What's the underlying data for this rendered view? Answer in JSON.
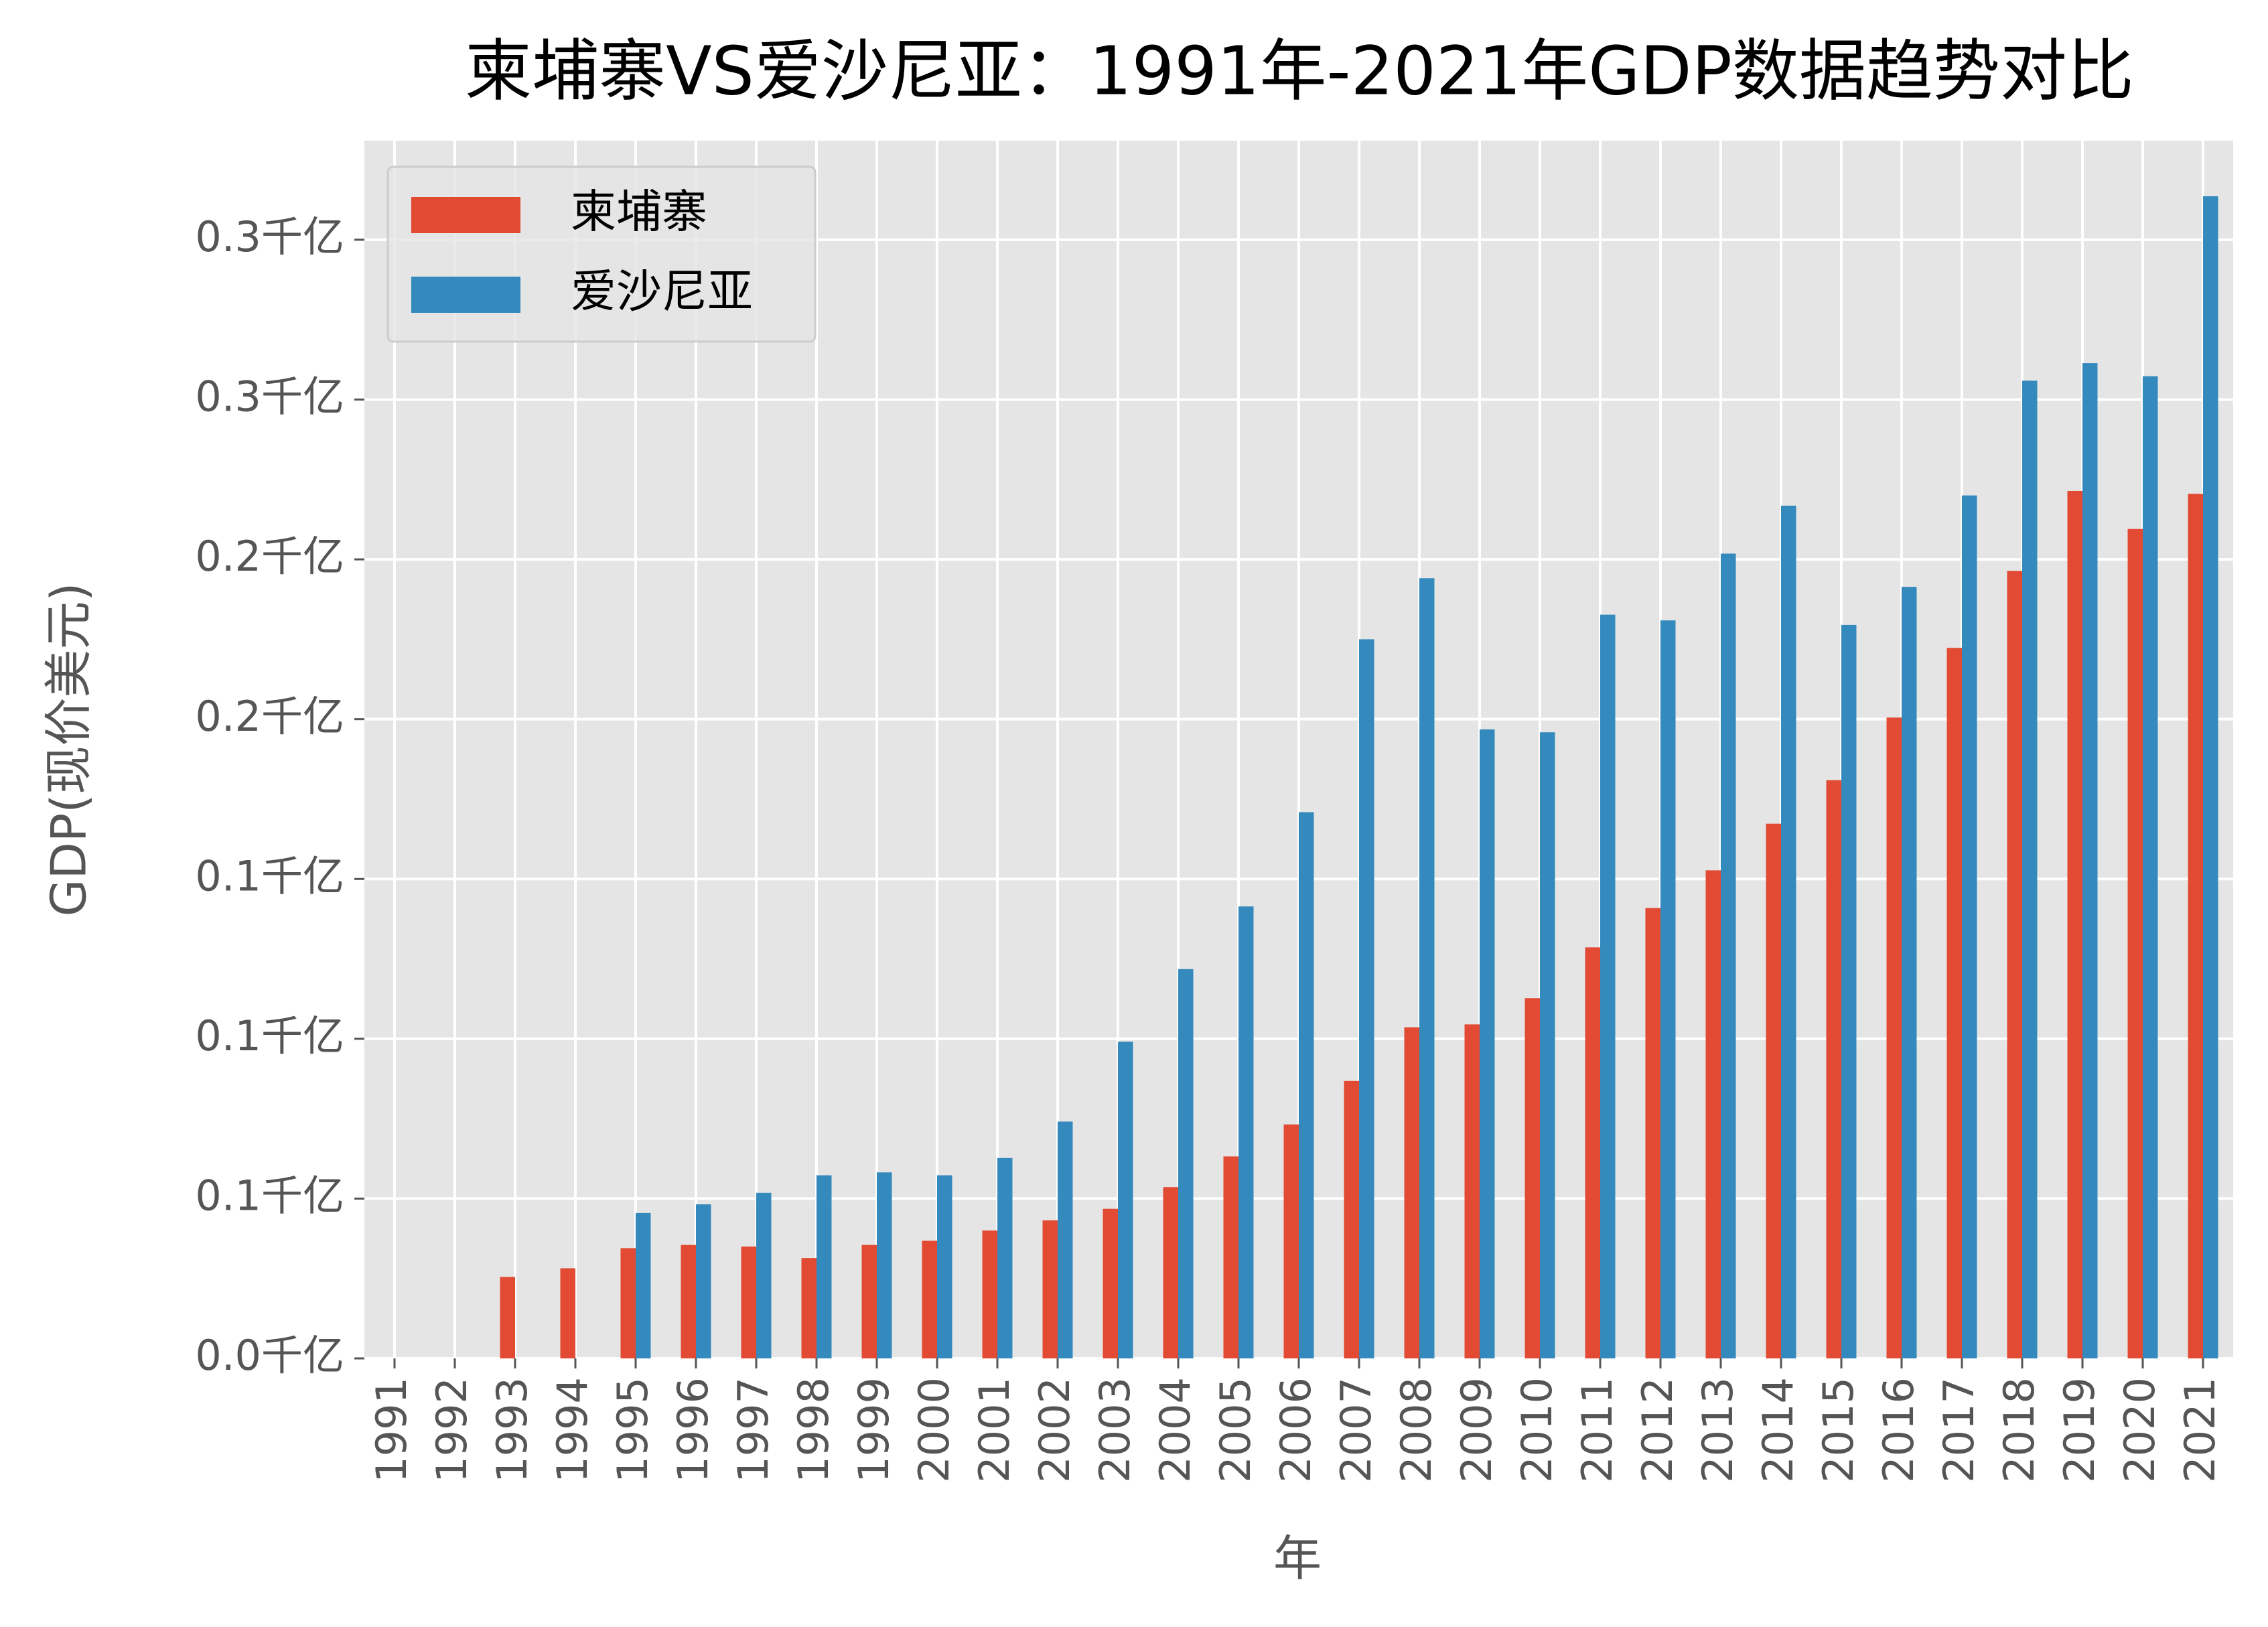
{
  "chart_data": {
    "type": "bar",
    "title": "柬埔寨VS爱沙尼亚：1991年-2021年GDP数据趋势对比",
    "x_label": "年",
    "y_label": "GDP(现价美元)",
    "categories": [
      "1991",
      "1992",
      "1993",
      "1994",
      "1995",
      "1996",
      "1997",
      "1998",
      "1999",
      "2000",
      "2001",
      "2002",
      "2003",
      "2004",
      "2005",
      "2006",
      "2007",
      "2008",
      "2009",
      "2010",
      "2011",
      "2012",
      "2013",
      "2014",
      "2015",
      "2016",
      "2017",
      "2018",
      "2019",
      "2020",
      "2021"
    ],
    "series": [
      {
        "name": "柬埔寨",
        "color": "#E24A33",
        "values": [
          null,
          null,
          0.0255,
          0.0282,
          0.0345,
          0.0355,
          0.035,
          0.0314,
          0.0355,
          0.0368,
          0.04,
          0.0432,
          0.0468,
          0.0536,
          0.0632,
          0.0732,
          0.0868,
          0.1036,
          0.1045,
          0.1127,
          0.1286,
          0.1409,
          0.1527,
          0.1673,
          0.1809,
          0.2005,
          0.2223,
          0.2464,
          0.2714,
          0.2595,
          0.2705
        ]
      },
      {
        "name": "爱沙尼亚",
        "color": "#348ABD",
        "values": [
          null,
          null,
          null,
          null,
          0.0455,
          0.0482,
          0.0518,
          0.0573,
          0.0582,
          0.0573,
          0.0627,
          0.0741,
          0.0991,
          0.1218,
          0.1414,
          0.1709,
          0.225,
          0.2441,
          0.1968,
          0.1959,
          0.2327,
          0.2309,
          0.2518,
          0.2668,
          0.2295,
          0.2414,
          0.27,
          0.3059,
          0.3114,
          0.3073,
          0.3636
        ]
      }
    ],
    "ylim": [
      0,
      0.381
    ],
    "yticks": [
      {
        "value": 0,
        "label": "0.0千亿"
      },
      {
        "value": 0.05,
        "label": "0.1千亿"
      },
      {
        "value": 0.1,
        "label": "0.1千亿"
      },
      {
        "value": 0.15,
        "label": "0.1千亿"
      },
      {
        "value": 0.2,
        "label": "0.2千亿"
      },
      {
        "value": 0.25,
        "label": "0.2千亿"
      },
      {
        "value": 0.3,
        "label": "0.3千亿"
      },
      {
        "value": 0.35,
        "label": "0.3千亿"
      }
    ],
    "grid": true,
    "legend": "upper left"
  }
}
